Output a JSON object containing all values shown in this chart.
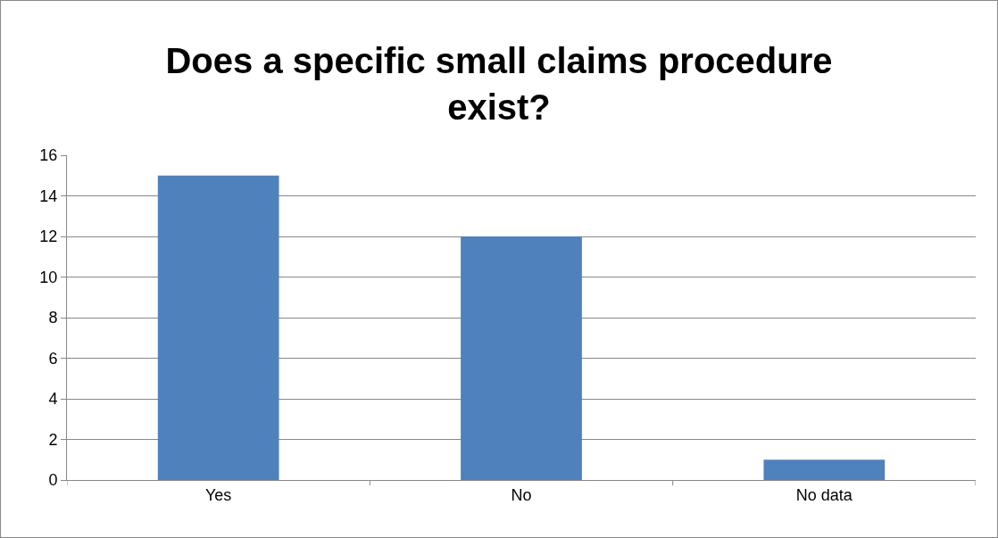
{
  "chart_data": {
    "type": "bar",
    "title": "Does a specific small claims procedure exist?",
    "categories": [
      "Yes",
      "No",
      "No data"
    ],
    "values": [
      15,
      12,
      1
    ],
    "color": "#4f81bd",
    "ylim": [
      0,
      16
    ],
    "yticks": [
      0,
      2,
      4,
      6,
      8,
      10,
      12,
      14,
      16
    ],
    "grid": "y",
    "legend": false
  }
}
